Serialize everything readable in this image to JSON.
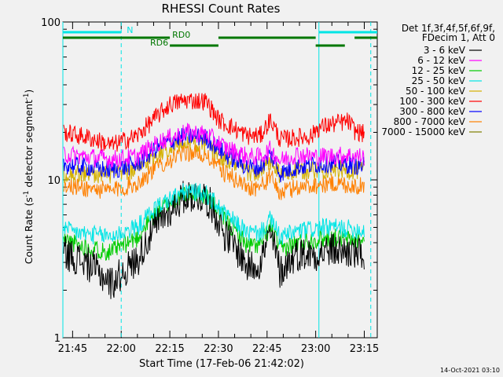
{
  "chart_data": {
    "type": "line",
    "title": "RHESSI Count Rates",
    "xlabel": "Start Time (17-Feb-06 21:42:02)",
    "ylabel_main": "Count Rate (s",
    "ylabel_sup": "-1",
    "ylabel_tail": " detector segment",
    "ylabel_sup2": "-1",
    "ylabel_end": ")",
    "y_scale": "log",
    "ylim": [
      1,
      100
    ],
    "y_tick_labels": [
      {
        "value": 1,
        "label": "1"
      },
      {
        "value": 10,
        "label": "10"
      },
      {
        "value": 100,
        "label": "100"
      }
    ],
    "xlim": [
      "21:42",
      "23:19"
    ],
    "x_tick_labels": [
      "21:45",
      "22:00",
      "22:15",
      "22:30",
      "22:45",
      "23:00",
      "23:15"
    ],
    "header_lines": [
      "Det 1f,3f,4f,5f,6f,9f,",
      "FDecim 1, Att 0"
    ],
    "timestamp": "14-Oct-2021 03:10",
    "series": [
      {
        "name": "3 - 6 keV",
        "color": "#000000",
        "times": [
          "21:42",
          "21:50",
          "21:57",
          "22:05",
          "22:12",
          "22:20",
          "22:26",
          "22:32",
          "22:39",
          "22:43",
          "22:46",
          "22:49",
          "22:54",
          "23:00",
          "23:05",
          "23:10",
          "23:15",
          "23:18"
        ],
        "values": [
          3.5,
          2.9,
          2.2,
          3.1,
          5.5,
          8.0,
          7.8,
          4.5,
          2.8,
          3.0,
          4.5,
          2.6,
          3.4,
          3.4,
          3.6,
          3.5,
          3.3,
          3.2
        ]
      },
      {
        "name": "6 - 12 keV",
        "color": "#ff00ff",
        "times": [
          "21:42",
          "21:57",
          "22:05",
          "22:12",
          "22:20",
          "22:26",
          "22:32",
          "22:39",
          "22:43",
          "22:46",
          "22:49",
          "22:54",
          "23:00",
          "23:05",
          "23:10",
          "23:15",
          "23:18"
        ],
        "values": [
          14.5,
          13.5,
          14.0,
          17.5,
          20.0,
          19.5,
          16.0,
          14.0,
          14.0,
          15.5,
          13.2,
          14.5,
          14.0,
          14.2,
          14.3,
          14.0,
          14.0
        ]
      },
      {
        "name": "12 - 25 keV",
        "color": "#00cc00",
        "times": [
          "21:42",
          "21:50",
          "21:57",
          "22:05",
          "22:12",
          "22:20",
          "22:26",
          "22:32",
          "22:39",
          "22:43",
          "22:46",
          "22:49",
          "22:54",
          "23:00",
          "23:05",
          "23:10",
          "23:15",
          "23:18"
        ],
        "values": [
          4.2,
          3.7,
          3.5,
          4.3,
          6.5,
          8.2,
          8.0,
          5.5,
          3.8,
          3.9,
          5.0,
          3.6,
          4.0,
          4.2,
          4.3,
          4.2,
          4.1,
          4.1
        ]
      },
      {
        "name": "25 - 50 keV",
        "color": "#00e5e5",
        "times": [
          "21:42",
          "21:50",
          "21:57",
          "22:05",
          "22:12",
          "22:20",
          "22:26",
          "22:32",
          "22:39",
          "22:43",
          "22:46",
          "22:49",
          "22:54",
          "23:00",
          "23:05",
          "23:10",
          "23:15",
          "23:18"
        ],
        "values": [
          4.8,
          4.5,
          4.4,
          5.0,
          7.0,
          8.5,
          8.2,
          6.0,
          4.6,
          4.6,
          5.6,
          4.3,
          4.7,
          4.9,
          5.0,
          4.9,
          4.8,
          4.8
        ]
      },
      {
        "name": "50 - 100 keV",
        "color": "#d4b000",
        "times": [
          "21:42",
          "21:57",
          "22:05",
          "22:12",
          "22:20",
          "22:26",
          "22:32",
          "22:39",
          "22:43",
          "22:46",
          "22:49",
          "22:54",
          "23:00",
          "23:05",
          "23:10",
          "23:15",
          "23:18"
        ],
        "values": [
          11.0,
          10.8,
          11.5,
          15.0,
          17.5,
          17.0,
          13.5,
          11.2,
          11.0,
          13.0,
          10.6,
          11.3,
          11.5,
          11.8,
          11.5,
          11.4,
          11.2
        ]
      },
      {
        "name": "100 - 300 keV",
        "color": "#ff0000",
        "times": [
          "21:42",
          "21:50",
          "21:57",
          "22:05",
          "22:10",
          "22:15",
          "22:20",
          "22:26",
          "22:30",
          "22:35",
          "22:39",
          "22:43",
          "22:46",
          "22:49",
          "22:54",
          "22:59",
          "23:00",
          "23:05",
          "23:10",
          "23:12",
          "23:15",
          "23:18"
        ],
        "values": [
          20.0,
          18.5,
          16.5,
          19.0,
          24.0,
          30.0,
          32.0,
          31.5,
          24.0,
          21.0,
          19.0,
          19.0,
          24.0,
          18.0,
          18.5,
          19.0,
          21.0,
          22.5,
          23.5,
          20.5,
          19.5,
          19.0
        ]
      },
      {
        "name": "300 - 800 keV",
        "color": "#0000ff",
        "times": [
          "21:42",
          "21:57",
          "22:05",
          "22:12",
          "22:20",
          "22:26",
          "22:32",
          "22:39",
          "22:43",
          "22:46",
          "22:49",
          "22:54",
          "23:00",
          "23:05",
          "23:10",
          "23:15",
          "23:18"
        ],
        "values": [
          12.5,
          11.5,
          12.5,
          16.5,
          19.0,
          18.5,
          14.5,
          12.0,
          12.0,
          14.5,
          11.0,
          12.0,
          12.5,
          12.8,
          12.5,
          12.2,
          12.0
        ]
      },
      {
        "name": "800 - 7000 keV",
        "color": "#ff8000",
        "times": [
          "21:42",
          "21:57",
          "22:05",
          "22:12",
          "22:20",
          "22:26",
          "22:32",
          "22:39",
          "22:43",
          "22:46",
          "22:49",
          "22:54",
          "23:00",
          "23:05",
          "23:10",
          "23:15",
          "23:18"
        ],
        "values": [
          9.2,
          8.5,
          9.5,
          12.5,
          15.0,
          14.5,
          11.0,
          9.0,
          9.0,
          10.5,
          8.2,
          9.0,
          9.3,
          9.5,
          9.3,
          9.0,
          8.8
        ]
      },
      {
        "name": "7000 - 15000 keV",
        "color": "#7f7f00",
        "times": [],
        "values": []
      }
    ],
    "state_bars": [
      {
        "name": "N",
        "label": "N",
        "color": "#00e5e5",
        "level": 1,
        "intervals": [
          [
            "21:42",
            "22:00"
          ],
          [
            "23:01",
            "23:19"
          ]
        ]
      },
      {
        "name": "RD0",
        "label": "RD0",
        "color": "#007700",
        "level": 2,
        "intervals": [
          [
            "21:42",
            "22:15"
          ],
          [
            "22:30",
            "23:00"
          ],
          [
            "23:12",
            "23:19"
          ]
        ]
      },
      {
        "name": "RD6",
        "label": "RD6",
        "color": "#007700",
        "level": 3,
        "intervals": [
          [
            "22:15",
            "22:30"
          ],
          [
            "23:00",
            "23:09"
          ]
        ]
      }
    ],
    "vertical_markers": [
      {
        "time": "21:42",
        "style": "solid"
      },
      {
        "time": "22:00",
        "style": "dashed"
      },
      {
        "time": "23:01",
        "style": "solid"
      },
      {
        "time": "23:17",
        "style": "dashed"
      }
    ],
    "legend_position": "right"
  }
}
